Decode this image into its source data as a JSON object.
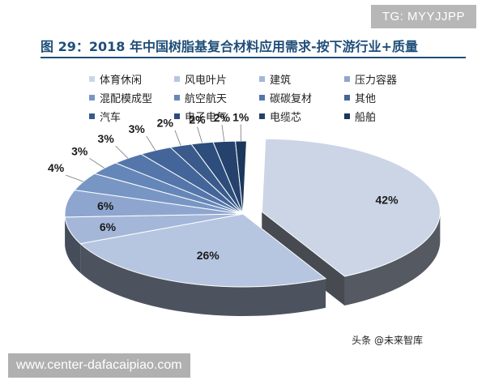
{
  "watermark": {
    "badge": "TG: MYYJJPP",
    "url": "www.center-dafacaipiao.com",
    "source": "头条 @未来智库"
  },
  "header": {
    "title": "图 29：2018 年中国树脂基复合材料应用需求-按下游行业+质量"
  },
  "chart_data": {
    "type": "pie",
    "title": "图 29：2018 年中国树脂基复合材料应用需求-按下游行业+质量",
    "legend_position": "top",
    "categories": [
      "体育休闲",
      "风电叶片",
      "建筑",
      "压力容器",
      "混配模成型",
      "航空航天",
      "碳碳复材",
      "其他",
      "汽车",
      "电子电气",
      "电缆芯",
      "船舶"
    ],
    "values": [
      42,
      26,
      6,
      6,
      4,
      3,
      3,
      3,
      2,
      2,
      2,
      1
    ],
    "labels": [
      "42%",
      "26%",
      "6%",
      "6%",
      "4%",
      "3%",
      "3%",
      "3%",
      "2%",
      "2%",
      "2%",
      "1%"
    ],
    "colors": [
      "#cbd5e6",
      "#b7c6e0",
      "#a4b7d9",
      "#8ea6cf",
      "#7896c4",
      "#6586b8",
      "#5476aa",
      "#43659a",
      "#395a8b",
      "#2d4d7c",
      "#24426c",
      "#1b375c"
    ]
  }
}
